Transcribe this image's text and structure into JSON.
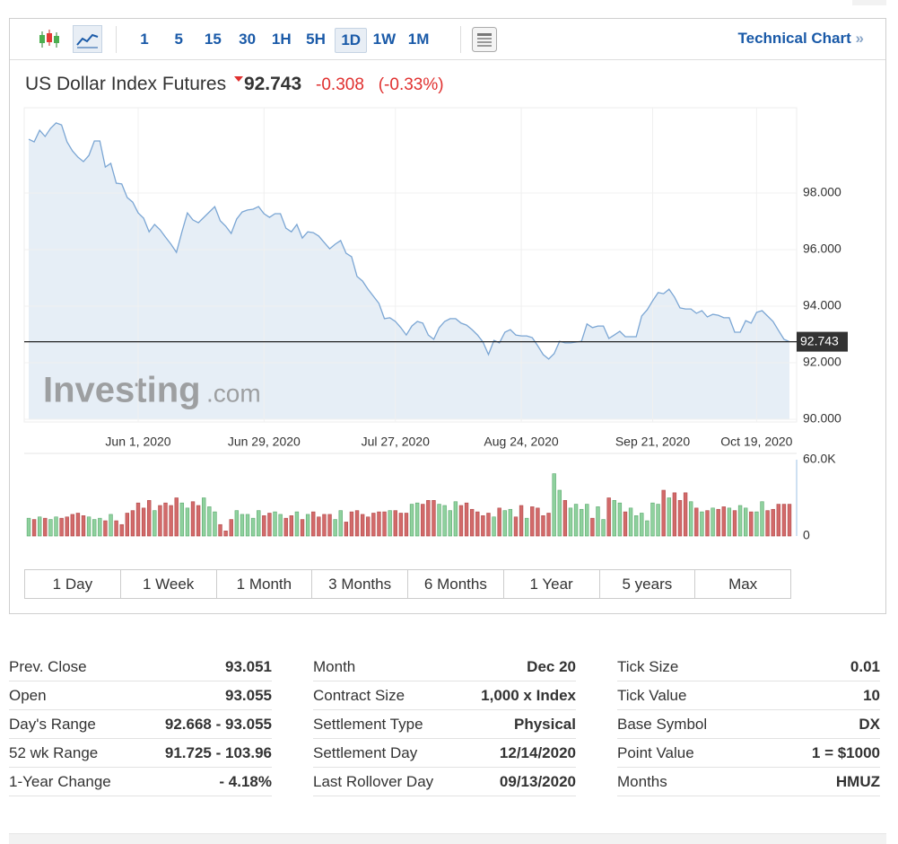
{
  "toolbar": {
    "intervals": [
      "1",
      "5",
      "15",
      "30",
      "1H",
      "5H",
      "1D",
      "1W",
      "1M"
    ],
    "selected": "1D",
    "technical_chart": "Technical Chart",
    "technical_chart_arrow": "»"
  },
  "header": {
    "name": "US Dollar Index Futures",
    "price": "92.743",
    "change": "-0.308",
    "change_pct": "(-0.33%)"
  },
  "watermark": {
    "brand": "Investing",
    "suffix": ".com"
  },
  "chart_data": [
    {
      "type": "line",
      "color": "#7ba6d4",
      "fill": "#e6eef6",
      "values": [
        99.9,
        99.81,
        100.22,
        100.0,
        100.29,
        100.48,
        100.41,
        99.81,
        99.49,
        99.27,
        99.11,
        99.33,
        99.84,
        99.84,
        98.92,
        99.05,
        98.35,
        98.32,
        97.84,
        97.68,
        97.3,
        97.11,
        96.63,
        96.89,
        96.7,
        96.44,
        96.19,
        95.9,
        96.63,
        97.3,
        97.05,
        96.95,
        97.14,
        97.33,
        97.52,
        97.02,
        96.83,
        96.57,
        97.08,
        97.33,
        97.4,
        97.43,
        97.52,
        97.27,
        97.14,
        97.27,
        97.27,
        96.76,
        96.63,
        96.89,
        96.41,
        96.63,
        96.6,
        96.48,
        96.25,
        96.03,
        96.19,
        96.32,
        95.87,
        95.75,
        95.05,
        94.89,
        94.6,
        94.35,
        94.1,
        93.56,
        93.59,
        93.46,
        93.24,
        92.98,
        93.3,
        93.46,
        93.4,
        92.98,
        92.83,
        93.24,
        93.46,
        93.56,
        93.56,
        93.4,
        93.33,
        93.17,
        92.98,
        92.73,
        92.29,
        92.79,
        92.7,
        93.08,
        93.17,
        92.98,
        92.95,
        92.95,
        92.89,
        92.6,
        92.29,
        92.13,
        92.32,
        92.76,
        92.7,
        92.7,
        92.73,
        92.76,
        93.37,
        93.24,
        93.3,
        93.3,
        92.86,
        92.98,
        93.11,
        92.92,
        92.92,
        92.92,
        93.65,
        93.87,
        94.19,
        94.48,
        94.44,
        94.6,
        94.32,
        93.94,
        93.9,
        93.9,
        93.75,
        93.84,
        93.62,
        93.71,
        93.68,
        93.59,
        93.59,
        93.08,
        93.08,
        93.49,
        93.4,
        93.78,
        93.84,
        93.65,
        93.46,
        93.14,
        92.83,
        92.743
      ],
      "xlim": [
        0,
        139
      ],
      "ylim": [
        90,
        101
      ],
      "xticks": [
        {
          "value": 20,
          "label": "Jun 1, 2020"
        },
        {
          "value": 43,
          "label": "Jun 29, 2020"
        },
        {
          "value": 67,
          "label": "Jul 27, 2020"
        },
        {
          "value": 90,
          "label": "Aug 24, 2020"
        },
        {
          "value": 114,
          "label": "Sep 21, 2020"
        },
        {
          "value": 133,
          "label": "Oct 19, 2020"
        }
      ],
      "yticks": [
        {
          "value": 90,
          "label": "90.000"
        },
        {
          "value": 92,
          "label": "92.000"
        },
        {
          "value": 94,
          "label": "94.000"
        },
        {
          "value": 96,
          "label": "96.000"
        },
        {
          "value": 98,
          "label": "98.000"
        }
      ],
      "grid": true,
      "reference_line": {
        "value": 92.743,
        "label": "92.743"
      }
    },
    {
      "type": "bar",
      "up_color": "#8fd19e",
      "down_color": "#d26a6a",
      "values": [
        14000,
        13000,
        15000,
        14000,
        13000,
        15000,
        14000,
        15000,
        17000,
        18000,
        16000,
        15000,
        13000,
        14000,
        12000,
        17000,
        12000,
        9000,
        18000,
        20000,
        26000,
        22000,
        28000,
        20000,
        24000,
        26000,
        24000,
        30000,
        26000,
        22000,
        27000,
        24000,
        30000,
        23000,
        19000,
        9000,
        4000,
        13000,
        20000,
        17000,
        17000,
        14000,
        20000,
        16000,
        18000,
        19000,
        17000,
        14000,
        16000,
        19000,
        13000,
        17000,
        19000,
        15000,
        17000,
        17000,
        13000,
        20000,
        11000,
        19000,
        20000,
        17000,
        15000,
        18000,
        19000,
        19000,
        20000,
        20000,
        18000,
        18000,
        25000,
        26000,
        25000,
        28000,
        28000,
        25000,
        24000,
        20000,
        27000,
        24000,
        26000,
        21000,
        19000,
        16000,
        18000,
        15000,
        22000,
        20000,
        21000,
        15000,
        24000,
        14000,
        23000,
        22000,
        16000,
        18000,
        49000,
        36000,
        28000,
        22000,
        25000,
        21000,
        25000,
        14000,
        23000,
        13000,
        30000,
        28000,
        26000,
        19000,
        22000,
        16000,
        18000,
        12000,
        26000,
        25000,
        36000,
        30000,
        34000,
        28000,
        34000,
        27000,
        22000,
        19000,
        20000,
        22000,
        21000,
        23000,
        22000,
        20000,
        24000,
        22000,
        19000,
        19000,
        27000,
        20000,
        21000,
        25000,
        25000,
        25000
      ],
      "ylim": [
        0,
        60000
      ],
      "yticks": [
        0,
        {
          "value": 60000,
          "label": "60.0K"
        }
      ]
    }
  ],
  "ranges": [
    "1 Day",
    "1 Week",
    "1 Month",
    "3 Months",
    "6 Months",
    "1 Year",
    "5 years",
    "Max"
  ],
  "table": {
    "columns": [
      [
        [
          "Prev. Close",
          "93.051"
        ],
        [
          "Open",
          "93.055"
        ],
        [
          "Day's Range",
          "92.668 - 93.055"
        ],
        [
          "52 wk Range",
          "91.725 - 103.96"
        ],
        [
          "1-Year Change",
          "- 4.18%"
        ]
      ],
      [
        [
          "Month",
          "Dec 20"
        ],
        [
          "Contract Size",
          "1,000 x Index"
        ],
        [
          "Settlement Type",
          "Physical"
        ],
        [
          "Settlement Day",
          "12/14/2020"
        ],
        [
          "Last Rollover Day",
          "09/13/2020"
        ]
      ],
      [
        [
          "Tick Size",
          "0.01"
        ],
        [
          "Tick Value",
          "10"
        ],
        [
          "Base Symbol",
          "DX"
        ],
        [
          "Point Value",
          "1 = $1000"
        ],
        [
          "Months",
          "HMUZ"
        ]
      ]
    ]
  }
}
